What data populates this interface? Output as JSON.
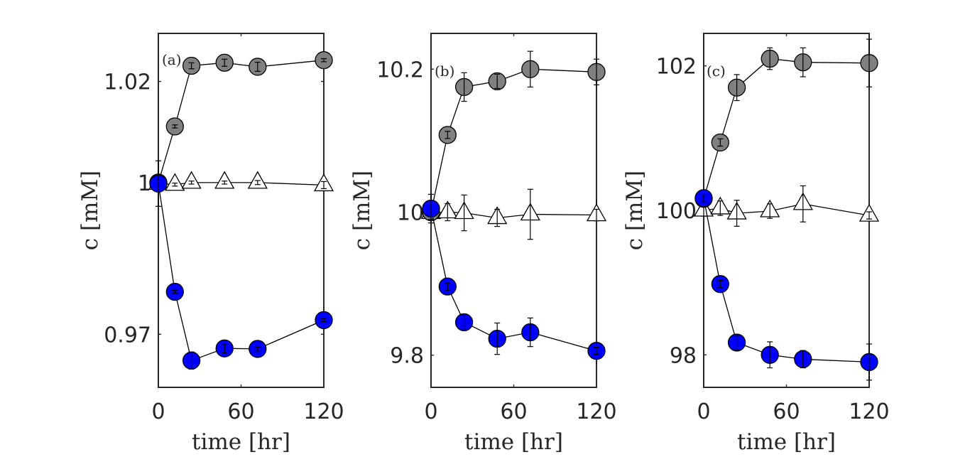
{
  "chart_data": [
    {
      "type": "line",
      "panel_label": "(a)",
      "xlabel": "time [hr]",
      "ylabel": "c [mM]",
      "xlim": [
        0,
        120
      ],
      "ylim": [
        0.9595,
        1.0295
      ],
      "xticks": [
        0,
        60,
        120
      ],
      "xtick_labels": [
        "0",
        "60",
        "120"
      ],
      "yticks": [
        0.97,
        1.0,
        1.02
      ],
      "ytick_labels": [
        "0.97",
        "1",
        "1.02"
      ],
      "series": [
        {
          "name": "gray circles",
          "marker": "circle",
          "color": "#808080",
          "x": [
            0,
            12,
            24,
            48,
            72,
            120
          ],
          "y": [
            1.0,
            1.0111,
            1.0231,
            1.0237,
            1.0229,
            1.0242
          ],
          "err": [
            0.0003,
            0.0003,
            0.0006,
            0.0007,
            0.0009,
            0.0003
          ]
        },
        {
          "name": "open triangles",
          "marker": "triangle",
          "color": "#ffffff",
          "x": [
            0,
            12,
            24,
            48,
            72,
            120
          ],
          "y": [
            0.9998,
            0.9996,
            1.0,
            1.0,
            1.0,
            0.9995
          ],
          "err": [
            0.0,
            0.0003,
            0.0003,
            0.0003,
            0.0004,
            0.0007
          ]
        },
        {
          "name": "blue circles",
          "marker": "circle",
          "color": "#0000ff",
          "x": [
            0,
            12,
            24,
            48,
            72,
            120
          ],
          "y": [
            0.9998,
            0.9784,
            0.9648,
            0.9672,
            0.9671,
            0.9728
          ],
          "err": [
            0.0045,
            0.0003,
            0.0017,
            0.0009,
            0.0004,
            0.0003
          ]
        }
      ]
    },
    {
      "type": "line",
      "panel_label": "(b)",
      "xlabel": "time [hr]",
      "ylabel": "c [mM]",
      "xlim": [
        0,
        120
      ],
      "ylim": [
        9.755,
        10.25
      ],
      "xticks": [
        0,
        60,
        120
      ],
      "xtick_labels": [
        "0",
        "60",
        "120"
      ],
      "yticks": [
        9.8,
        10.0,
        10.2
      ],
      "ytick_labels": [
        "9.8",
        "10",
        "10.2"
      ],
      "series": [
        {
          "name": "gray circles",
          "marker": "circle",
          "color": "#808080",
          "x": [
            0,
            12,
            24,
            48,
            72,
            120
          ],
          "y": [
            10.0,
            10.108,
            10.175,
            10.183,
            10.2,
            10.196
          ],
          "err": [
            0.01,
            0.005,
            0.02,
            0.01,
            0.025,
            0.018
          ]
        },
        {
          "name": "open triangles",
          "marker": "triangle",
          "color": "#ffffff",
          "x": [
            0,
            12,
            24,
            48,
            72,
            120
          ],
          "y": [
            9.999,
            10.0,
            9.999,
            9.992,
            9.997,
            9.996
          ],
          "err": [
            0.01,
            0.012,
            0.025,
            0.012,
            0.035,
            0.008
          ]
        },
        {
          "name": "blue circles",
          "marker": "circle",
          "color": "#0000ff",
          "x": [
            0,
            12,
            24,
            48,
            72,
            120
          ],
          "y": [
            10.005,
            9.896,
            9.846,
            9.823,
            9.832,
            9.806
          ],
          "err": [
            0.02,
            0.005,
            0.01,
            0.022,
            0.02,
            0.005
          ]
        }
      ]
    },
    {
      "type": "line",
      "panel_label": "(c)",
      "xlabel": "time [hr]",
      "ylabel": "c [mM]",
      "xlim": [
        0,
        120
      ],
      "ylim": [
        97.55,
        102.45
      ],
      "xticks": [
        0,
        60,
        120
      ],
      "xtick_labels": [
        "0",
        "60",
        "120"
      ],
      "yticks": [
        98,
        100,
        102
      ],
      "ytick_labels": [
        "98",
        "100",
        "102"
      ],
      "series": [
        {
          "name": "gray circles",
          "marker": "circle",
          "color": "#808080",
          "x": [
            0,
            12,
            24,
            48,
            72,
            120
          ],
          "y": [
            100.16,
            100.94,
            101.7,
            102.1,
            102.05,
            102.04
          ],
          "err": [
            0.05,
            0.05,
            0.18,
            0.15,
            0.2,
            0.33
          ]
        },
        {
          "name": "open triangles",
          "marker": "triangle",
          "color": "#ffffff",
          "x": [
            0,
            12,
            24,
            48,
            72,
            120
          ],
          "y": [
            100.0,
            100.03,
            99.96,
            99.99,
            100.09,
            99.93
          ],
          "err": [
            0.08,
            0.1,
            0.18,
            0.1,
            0.25,
            0.05
          ]
        },
        {
          "name": "blue circles",
          "marker": "circle",
          "color": "#0000ff",
          "x": [
            0,
            12,
            24,
            48,
            72,
            120
          ],
          "y": [
            100.17,
            98.98,
            98.17,
            98.0,
            97.94,
            97.9
          ],
          "err": [
            0.05,
            0.05,
            0.1,
            0.18,
            0.12,
            0.25
          ]
        }
      ]
    }
  ]
}
